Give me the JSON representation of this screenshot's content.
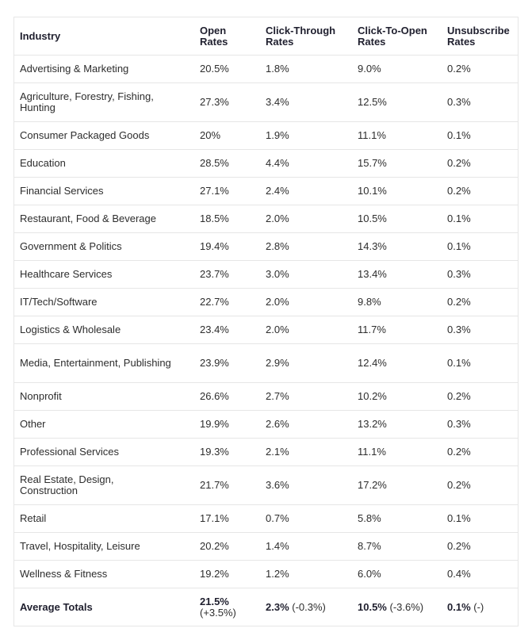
{
  "headers": [
    "Industry",
    "Open Rates",
    "Click-Through Rates",
    "Click-To-Open Rates",
    "Unsubscribe Rates"
  ],
  "rows": [
    [
      "Advertising & Marketing",
      "20.5%",
      "1.8%",
      "9.0%",
      "0.2%"
    ],
    [
      "Agriculture, Forestry, Fishing, Hunting",
      "27.3%",
      "3.4%",
      "12.5%",
      "0.3%"
    ],
    [
      "Consumer Packaged Goods",
      "20%",
      "1.9%",
      "11.1%",
      "0.1%"
    ],
    [
      "Education",
      "28.5%",
      "4.4%",
      "15.7%",
      "0.2%"
    ],
    [
      "Financial Services",
      "27.1%",
      "2.4%",
      "10.1%",
      "0.2%"
    ],
    [
      "Restaurant, Food & Beverage",
      "18.5%",
      "2.0%",
      "10.5%",
      "0.1%"
    ],
    [
      "Government & Politics",
      "19.4%",
      "2.8%",
      "14.3%",
      "0.1%"
    ],
    [
      "Healthcare Services",
      "23.7%",
      "3.0%",
      "13.4%",
      "0.3%"
    ],
    [
      "IT/Tech/Software",
      "22.7%",
      "2.0%",
      "9.8%",
      "0.2%"
    ],
    [
      "Logistics & Wholesale",
      "23.4%",
      "2.0%",
      "11.7%",
      "0.3%"
    ],
    [
      "Media, Entertainment, Publishing",
      "23.9%",
      "2.9%",
      "12.4%",
      "0.1%"
    ],
    [
      "Nonprofit",
      "26.6%",
      "2.7%",
      "10.2%",
      "0.2%"
    ],
    [
      "Other",
      "19.9%",
      "2.6%",
      "13.2%",
      "0.3%"
    ],
    [
      "Professional Services",
      "19.3%",
      "2.1%",
      "11.1%",
      "0.2%"
    ],
    [
      "Real Estate, Design, Construction",
      "21.7%",
      "3.6%",
      "17.2%",
      "0.2%"
    ],
    [
      "Retail",
      "17.1%",
      "0.7%",
      "5.8%",
      "0.1%"
    ],
    [
      "Travel, Hospitality, Leisure",
      "20.2%",
      "1.4%",
      "8.7%",
      "0.2%"
    ],
    [
      "Wellness & Fitness",
      "19.2%",
      "1.2%",
      "6.0%",
      "0.4%"
    ]
  ],
  "totals": {
    "label": "Average Totals",
    "values": [
      {
        "value": "21.5%",
        "change": "(+3.5%)"
      },
      {
        "value": "2.3%",
        "change": "(-0.3%)"
      },
      {
        "value": "10.5%",
        "change": "(-3.6%)"
      },
      {
        "value": "0.1%",
        "change": "(-)"
      }
    ]
  }
}
